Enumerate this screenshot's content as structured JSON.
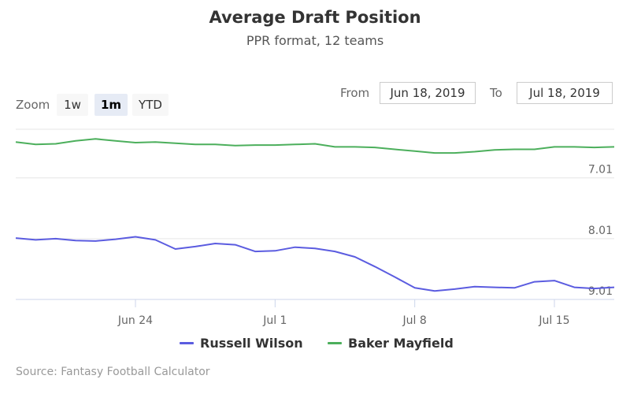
{
  "chart_data": {
    "type": "line",
    "title": "Average Draft Position",
    "subtitle": "PPR format, 12 teams",
    "ylim": [
      6.21,
      9.01
    ],
    "y_reversed": true,
    "yticks": [
      "7.01",
      "8.01",
      "9.01"
    ],
    "xticks": [
      "Jun 24",
      "Jul 1",
      "Jul 8",
      "Jul 15"
    ],
    "x": [
      "Jun 18",
      "Jun 19",
      "Jun 20",
      "Jun 21",
      "Jun 22",
      "Jun 23",
      "Jun 24",
      "Jun 25",
      "Jun 26",
      "Jun 27",
      "Jun 28",
      "Jun 29",
      "Jun 30",
      "Jul 1",
      "Jul 2",
      "Jul 3",
      "Jul 4",
      "Jul 5",
      "Jul 6",
      "Jul 7",
      "Jul 8",
      "Jul 9",
      "Jul 10",
      "Jul 11",
      "Jul 12",
      "Jul 13",
      "Jul 14",
      "Jul 15",
      "Jul 16",
      "Jul 17",
      "Jul 18"
    ],
    "series": [
      {
        "name": "Russell Wilson",
        "color": "#5b5ce0",
        "values": [
          8.0,
          8.03,
          8.01,
          8.04,
          8.05,
          8.02,
          7.98,
          8.03,
          8.18,
          8.14,
          8.09,
          8.11,
          8.22,
          8.21,
          8.15,
          8.17,
          8.22,
          8.31,
          8.47,
          8.64,
          8.82,
          8.87,
          8.84,
          8.8,
          8.81,
          8.82,
          8.72,
          8.7,
          8.81,
          8.83,
          8.81
        ]
      },
      {
        "name": "Baker Mayfield",
        "color": "#4caf5c",
        "values": [
          6.42,
          6.46,
          6.45,
          6.4,
          6.37,
          6.4,
          6.43,
          6.42,
          6.44,
          6.46,
          6.46,
          6.48,
          6.47,
          6.47,
          6.46,
          6.45,
          6.5,
          6.5,
          6.51,
          6.54,
          6.57,
          6.6,
          6.6,
          6.58,
          6.55,
          6.54,
          6.54,
          6.5,
          6.5,
          6.51,
          6.5
        ]
      }
    ],
    "grid": true,
    "legend": "bottom"
  },
  "controls": {
    "zoom_label": "Zoom",
    "zoom_buttons": [
      "1w",
      "1m",
      "YTD"
    ],
    "from_label": "From",
    "from_value": "Jun 18, 2019",
    "to_label": "To",
    "to_value": "Jul 18, 2019"
  },
  "credits": "Source: Fantasy Football Calculator"
}
